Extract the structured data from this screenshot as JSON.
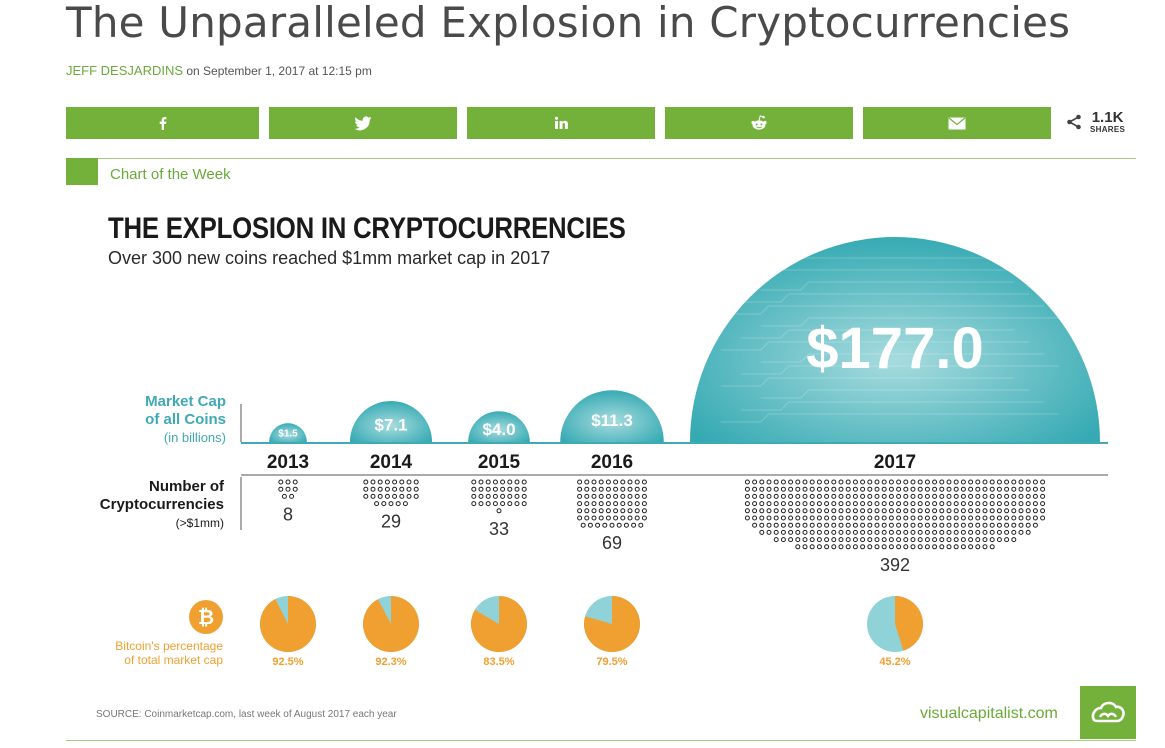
{
  "article": {
    "title": "The Unparalleled Explosion in Cryptocurrencies",
    "author": "JEFF DESJARDINS",
    "date": "on September 1, 2017 at 12:15 pm"
  },
  "share": {
    "buttons": [
      {
        "icon": "facebook-icon"
      },
      {
        "icon": "twitter-icon"
      },
      {
        "icon": "linkedin-icon"
      },
      {
        "icon": "reddit-icon"
      },
      {
        "icon": "email-icon"
      }
    ],
    "count": "1.1K",
    "count_label": "SHARES",
    "accent": "#73b13b"
  },
  "section_label": "Chart of the Week",
  "infographic": {
    "title": "THE EXPLOSION IN CRYPTOCURRENCIES",
    "subtitle": "Over 300 new coins reached $1mm market cap in 2017",
    "market_cap_label": {
      "line1": "Market Cap",
      "line2": "of all Coins",
      "line3": "(in billions)"
    },
    "coins_label": {
      "line1": "Number of",
      "line2": "Cryptocurrencies",
      "line3": "(>$1mm)"
    },
    "bitcoin_label": {
      "line1": "Bitcoin's percentage",
      "line2": "of total market cap"
    },
    "source": "SOURCE: Coinmarketcap.com, last week of August 2017 each year",
    "brand": "visualcapitalist.com",
    "colors": {
      "teal": "#3fb0b8",
      "orange": "#f0a030",
      "pie_rest": "#8fd3d8"
    }
  },
  "chart_data": {
    "type": "bar",
    "categories": [
      "2013",
      "2014",
      "2015",
      "2016",
      "2017"
    ],
    "series": [
      {
        "name": "Market Cap of all Coins (in billions)",
        "values": [
          1.5,
          7.1,
          4.0,
          11.3,
          177.0
        ],
        "labels": [
          "$1.5",
          "$7.1",
          "$4.0",
          "$11.3",
          "$177.0"
        ]
      },
      {
        "name": "Number of Cryptocurrencies (>$1mm)",
        "values": [
          8,
          29,
          33,
          69,
          392
        ],
        "labels": [
          "8",
          "29",
          "33",
          "69",
          "392"
        ]
      },
      {
        "name": "Bitcoin's percentage of total market cap",
        "values": [
          92.5,
          92.3,
          83.5,
          79.5,
          45.2
        ],
        "labels": [
          "92.5%",
          "92.3%",
          "83.5%",
          "79.5%",
          "45.2%"
        ]
      }
    ]
  }
}
